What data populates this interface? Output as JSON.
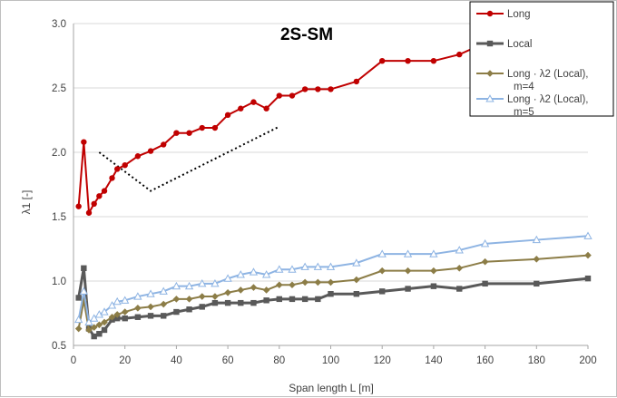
{
  "chart_data": {
    "type": "line",
    "title": "2S-SM",
    "xlabel": "Span length L [m]",
    "ylabel": "λ1 [-]",
    "xlim": [
      0,
      200
    ],
    "ylim": [
      0.5,
      3.0
    ],
    "xticks": [
      "0",
      "20",
      "40",
      "60",
      "80",
      "100",
      "120",
      "140",
      "160",
      "180",
      "200"
    ],
    "yticks": [
      "0.5",
      "1.0",
      "1.5",
      "2.0",
      "2.5",
      "3.0"
    ],
    "grid": "horizontal",
    "legend_position": "top-right",
    "series": [
      {
        "name": "Long",
        "color": "#c00000",
        "marker": "circle",
        "x": [
          2,
          4,
          6,
          8,
          10,
          12,
          15,
          17,
          20,
          25,
          30,
          35,
          40,
          45,
          50,
          55,
          60,
          65,
          70,
          75,
          80,
          85,
          90,
          95,
          100,
          110,
          120,
          130,
          140,
          150,
          160,
          180,
          200
        ],
        "y": [
          1.58,
          2.08,
          1.53,
          1.6,
          1.66,
          1.7,
          1.8,
          1.87,
          1.9,
          1.97,
          2.01,
          2.06,
          2.15,
          2.15,
          2.19,
          2.19,
          2.29,
          2.34,
          2.39,
          2.34,
          2.44,
          2.44,
          2.49,
          2.49,
          2.49,
          2.55,
          2.71,
          2.71,
          2.71,
          2.76,
          2.85,
          2.9,
          3.0
        ]
      },
      {
        "name": "Local",
        "color": "#595959",
        "marker": "square",
        "x": [
          2,
          4,
          6,
          8,
          10,
          12,
          15,
          17,
          20,
          25,
          30,
          35,
          40,
          45,
          50,
          55,
          60,
          65,
          70,
          75,
          80,
          85,
          90,
          95,
          100,
          110,
          120,
          130,
          140,
          150,
          160,
          180,
          200
        ],
        "y": [
          0.87,
          1.1,
          0.63,
          0.57,
          0.59,
          0.62,
          0.7,
          0.71,
          0.71,
          0.72,
          0.73,
          0.73,
          0.76,
          0.78,
          0.8,
          0.83,
          0.83,
          0.83,
          0.83,
          0.85,
          0.86,
          0.86,
          0.86,
          0.86,
          0.9,
          0.9,
          0.92,
          0.94,
          0.96,
          0.94,
          0.98,
          0.98,
          1.02
        ]
      },
      {
        "name": "Long · λ2 (Local), m=4",
        "color": "#8c7d47",
        "marker": "diamond",
        "x": [
          2,
          4,
          6,
          8,
          10,
          12,
          15,
          17,
          20,
          25,
          30,
          35,
          40,
          45,
          50,
          55,
          60,
          65,
          70,
          75,
          80,
          85,
          90,
          95,
          100,
          110,
          120,
          130,
          140,
          150,
          160,
          180,
          200
        ],
        "y": [
          0.63,
          0.85,
          0.62,
          0.64,
          0.66,
          0.68,
          0.72,
          0.74,
          0.76,
          0.79,
          0.8,
          0.82,
          0.86,
          0.86,
          0.88,
          0.88,
          0.91,
          0.93,
          0.95,
          0.93,
          0.97,
          0.97,
          0.99,
          0.99,
          0.99,
          1.01,
          1.08,
          1.08,
          1.08,
          1.1,
          1.15,
          1.17,
          1.2
        ]
      },
      {
        "name": "Long · λ2 (Local), m=5",
        "color": "#8eb4e3",
        "marker": "triangle",
        "x": [
          2,
          4,
          6,
          8,
          10,
          12,
          15,
          17,
          20,
          25,
          30,
          35,
          40,
          45,
          50,
          55,
          60,
          65,
          70,
          75,
          80,
          85,
          90,
          95,
          100,
          110,
          120,
          130,
          140,
          150,
          160,
          180,
          200
        ],
        "y": [
          0.7,
          0.92,
          0.68,
          0.71,
          0.74,
          0.76,
          0.81,
          0.84,
          0.85,
          0.88,
          0.9,
          0.92,
          0.96,
          0.96,
          0.98,
          0.98,
          1.02,
          1.05,
          1.07,
          1.05,
          1.09,
          1.09,
          1.11,
          1.11,
          1.11,
          1.14,
          1.21,
          1.21,
          1.21,
          1.24,
          1.29,
          1.32,
          1.35
        ]
      }
    ],
    "annotation_line": {
      "color": "#000000",
      "style": "dotted",
      "x": [
        10,
        30,
        80
      ],
      "y": [
        2.0,
        1.7,
        2.2
      ]
    }
  }
}
